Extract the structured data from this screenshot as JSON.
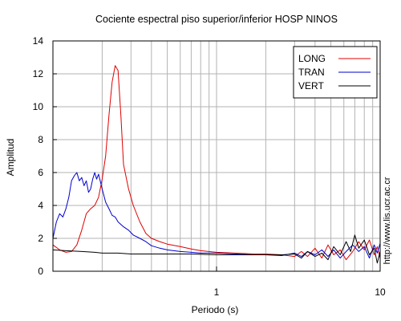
{
  "chart_data": {
    "type": "line",
    "title": "Cociente espectral piso superior/inferior  HOSP NINOS",
    "xlabel": "Periodo (s)",
    "ylabel": "Amplitud",
    "x_scale": "log",
    "xlim": [
      0.1,
      10
    ],
    "ylim": [
      0,
      14
    ],
    "yticks": [
      0,
      2,
      4,
      6,
      8,
      10,
      12,
      14
    ],
    "xticks": [
      {
        "value": 1,
        "label": "1"
      },
      {
        "value": 10,
        "label": "10"
      }
    ],
    "grid": true,
    "legend_position": "top-right",
    "watermark": "http://www.lis.ucr.ac.cr",
    "series": [
      {
        "name": "LONG",
        "color": "#e00000",
        "points": [
          [
            0.1,
            1.6
          ],
          [
            0.11,
            1.3
          ],
          [
            0.12,
            1.15
          ],
          [
            0.13,
            1.2
          ],
          [
            0.14,
            1.6
          ],
          [
            0.15,
            2.5
          ],
          [
            0.16,
            3.5
          ],
          [
            0.17,
            3.8
          ],
          [
            0.18,
            4.0
          ],
          [
            0.19,
            4.5
          ],
          [
            0.2,
            5.6
          ],
          [
            0.21,
            7.0
          ],
          [
            0.22,
            9.5
          ],
          [
            0.23,
            11.5
          ],
          [
            0.24,
            12.5
          ],
          [
            0.25,
            12.2
          ],
          [
            0.26,
            9.5
          ],
          [
            0.27,
            6.5
          ],
          [
            0.29,
            5.0
          ],
          [
            0.31,
            4.0
          ],
          [
            0.34,
            3.0
          ],
          [
            0.37,
            2.3
          ],
          [
            0.4,
            2.0
          ],
          [
            0.45,
            1.8
          ],
          [
            0.5,
            1.65
          ],
          [
            0.6,
            1.5
          ],
          [
            0.7,
            1.35
          ],
          [
            0.8,
            1.25
          ],
          [
            1.0,
            1.15
          ],
          [
            1.3,
            1.1
          ],
          [
            1.7,
            1.05
          ],
          [
            2.0,
            1.05
          ],
          [
            2.5,
            1.0
          ],
          [
            3.0,
            0.9
          ],
          [
            3.3,
            1.2
          ],
          [
            3.6,
            0.9
          ],
          [
            4.0,
            1.4
          ],
          [
            4.4,
            0.8
          ],
          [
            4.8,
            1.6
          ],
          [
            5.2,
            1.0
          ],
          [
            5.7,
            1.3
          ],
          [
            6.2,
            0.7
          ],
          [
            6.8,
            1.2
          ],
          [
            7.4,
            1.8
          ],
          [
            8.0,
            1.3
          ],
          [
            8.6,
            1.9
          ],
          [
            9.2,
            1.0
          ],
          [
            9.6,
            1.5
          ],
          [
            10.0,
            0.8
          ]
        ]
      },
      {
        "name": "TRAN",
        "color": "#0000cc",
        "points": [
          [
            0.1,
            2.0
          ],
          [
            0.105,
            3.0
          ],
          [
            0.11,
            3.5
          ],
          [
            0.115,
            3.3
          ],
          [
            0.12,
            3.8
          ],
          [
            0.125,
            4.5
          ],
          [
            0.13,
            5.5
          ],
          [
            0.135,
            5.8
          ],
          [
            0.14,
            6.0
          ],
          [
            0.145,
            5.5
          ],
          [
            0.15,
            5.7
          ],
          [
            0.155,
            5.2
          ],
          [
            0.16,
            5.5
          ],
          [
            0.165,
            4.8
          ],
          [
            0.17,
            5.0
          ],
          [
            0.175,
            5.6
          ],
          [
            0.18,
            6.0
          ],
          [
            0.185,
            5.6
          ],
          [
            0.19,
            5.9
          ],
          [
            0.2,
            5.0
          ],
          [
            0.21,
            4.2
          ],
          [
            0.22,
            3.8
          ],
          [
            0.23,
            3.4
          ],
          [
            0.24,
            3.3
          ],
          [
            0.25,
            3.0
          ],
          [
            0.27,
            2.7
          ],
          [
            0.29,
            2.5
          ],
          [
            0.31,
            2.2
          ],
          [
            0.34,
            2.0
          ],
          [
            0.37,
            1.8
          ],
          [
            0.4,
            1.55
          ],
          [
            0.45,
            1.4
          ],
          [
            0.5,
            1.3
          ],
          [
            0.6,
            1.2
          ],
          [
            0.7,
            1.15
          ],
          [
            0.8,
            1.1
          ],
          [
            1.0,
            1.1
          ],
          [
            1.3,
            1.05
          ],
          [
            1.7,
            1.0
          ],
          [
            2.0,
            1.0
          ],
          [
            2.5,
            0.95
          ],
          [
            3.0,
            1.1
          ],
          [
            3.3,
            0.9
          ],
          [
            3.6,
            1.2
          ],
          [
            4.0,
            1.0
          ],
          [
            4.4,
            1.3
          ],
          [
            4.8,
            0.9
          ],
          [
            5.2,
            1.3
          ],
          [
            5.7,
            0.8
          ],
          [
            6.2,
            1.2
          ],
          [
            6.8,
            1.6
          ],
          [
            7.4,
            1.2
          ],
          [
            8.0,
            1.5
          ],
          [
            8.6,
            0.8
          ],
          [
            9.2,
            1.6
          ],
          [
            9.6,
            1.1
          ],
          [
            10.0,
            1.7
          ]
        ]
      },
      {
        "name": "VERT",
        "color": "#000000",
        "points": [
          [
            0.1,
            1.3
          ],
          [
            0.12,
            1.25
          ],
          [
            0.15,
            1.2
          ],
          [
            0.18,
            1.15
          ],
          [
            0.2,
            1.1
          ],
          [
            0.25,
            1.1
          ],
          [
            0.3,
            1.05
          ],
          [
            0.4,
            1.05
          ],
          [
            0.5,
            1.05
          ],
          [
            0.7,
            1.05
          ],
          [
            1.0,
            1.0
          ],
          [
            1.5,
            1.0
          ],
          [
            2.0,
            1.0
          ],
          [
            2.5,
            1.0
          ],
          [
            3.0,
            1.05
          ],
          [
            3.3,
            0.8
          ],
          [
            3.6,
            1.2
          ],
          [
            4.0,
            0.9
          ],
          [
            4.4,
            1.1
          ],
          [
            4.8,
            0.7
          ],
          [
            5.2,
            1.5
          ],
          [
            5.7,
            1.0
          ],
          [
            6.2,
            1.8
          ],
          [
            6.6,
            1.2
          ],
          [
            7.0,
            2.2
          ],
          [
            7.4,
            1.4
          ],
          [
            8.0,
            1.9
          ],
          [
            8.6,
            1.0
          ],
          [
            9.2,
            1.4
          ],
          [
            9.6,
            0.5
          ],
          [
            10.0,
            1.2
          ]
        ]
      }
    ]
  }
}
